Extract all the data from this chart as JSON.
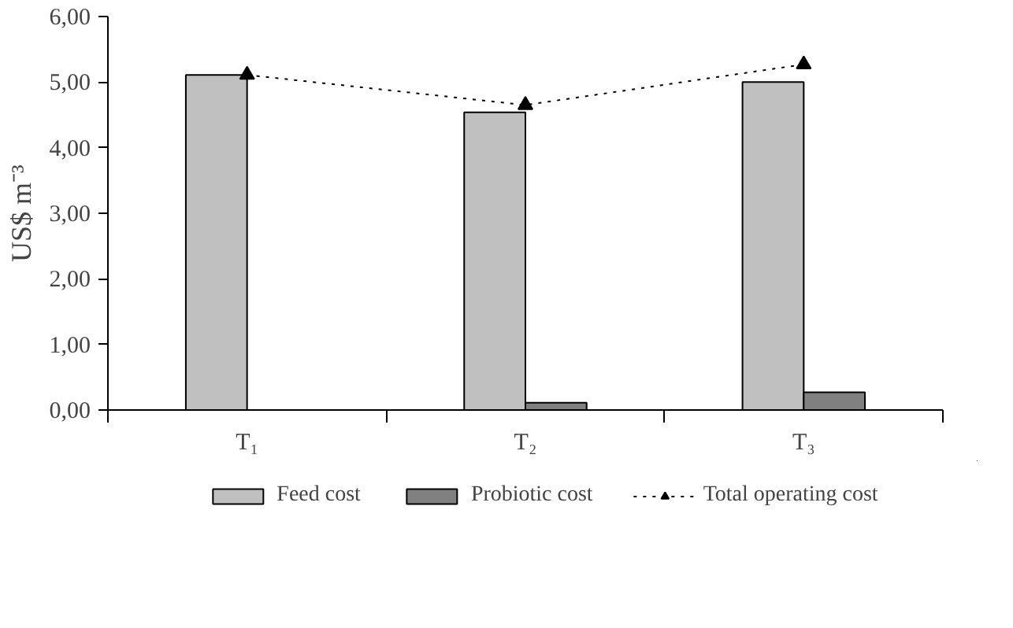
{
  "chart_data": {
    "type": "bar",
    "ylabel": "US$ m⁻³",
    "categories": [
      "T₁",
      "T₂",
      "T₃"
    ],
    "series": [
      {
        "name": "Feed cost",
        "color": "#c0c0c0",
        "values": [
          5.11,
          4.54,
          5.0
        ]
      },
      {
        "name": "Probiotic cost",
        "color": "#808080",
        "values": [
          null,
          0.11,
          0.27
        ]
      },
      {
        "name": "Total operating cost",
        "type": "line",
        "color": "#000000",
        "marker": "triangle",
        "line_style": "dotted",
        "values": [
          5.11,
          4.65,
          5.27
        ]
      }
    ],
    "ylim": [
      0,
      6
    ],
    "yticks": [
      {
        "value": 0,
        "label": "0,00"
      },
      {
        "value": 1,
        "label": "1,00"
      },
      {
        "value": 2,
        "label": "2,00"
      },
      {
        "value": 3,
        "label": "3,00"
      },
      {
        "value": 4,
        "label": "4,00"
      },
      {
        "value": 5,
        "label": "5,00"
      },
      {
        "value": 6,
        "label": "6,00"
      }
    ],
    "grid": false,
    "legend": "bottom"
  }
}
